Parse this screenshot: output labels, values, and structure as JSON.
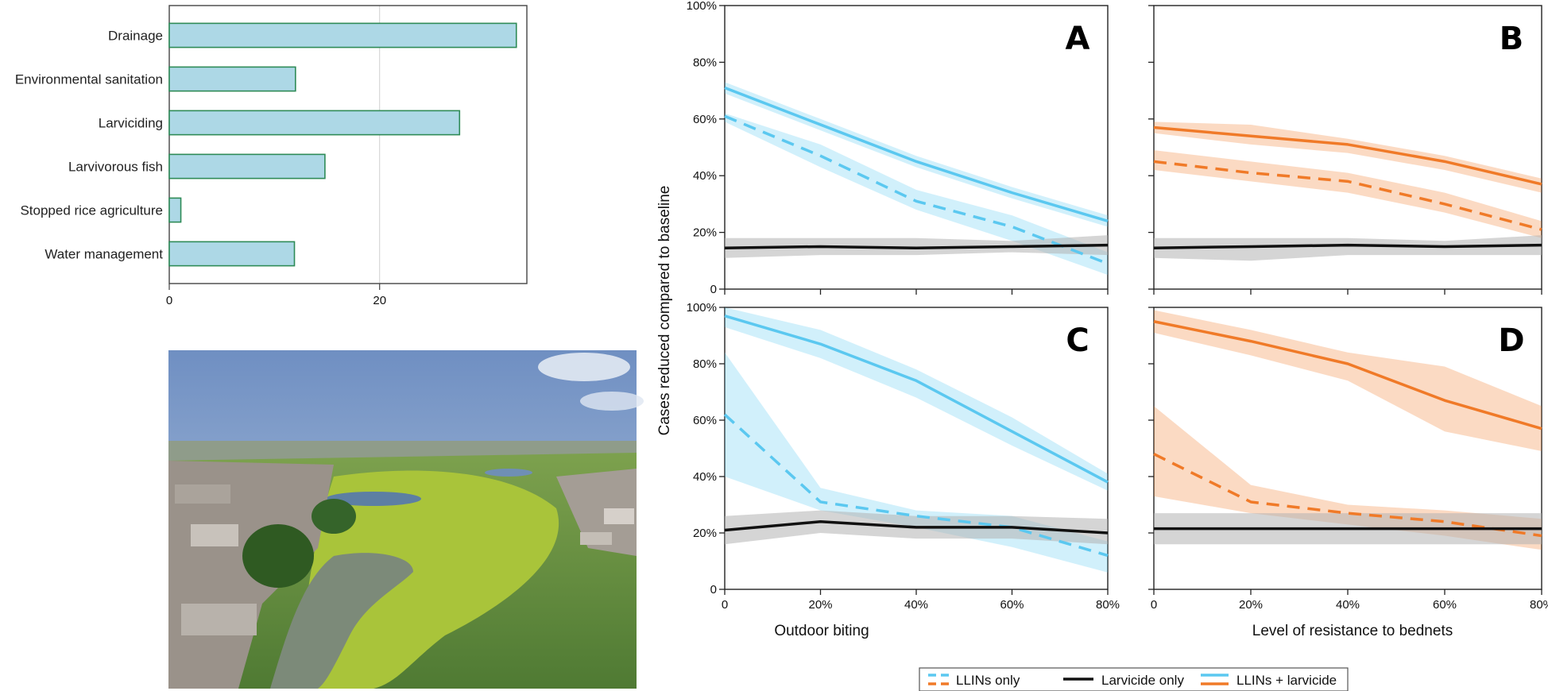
{
  "colors": {
    "bar_fill": "#add8e6",
    "bar_stroke": "#2e8b57",
    "blue": "#5bc8f0",
    "orange": "#f07a28",
    "black": "#111111",
    "gray_band": "#b3b3b3"
  },
  "chart_data": [
    {
      "id": "bar-chart",
      "type": "bar",
      "orientation": "horizontal",
      "categories": [
        "Drainage",
        "Environmental sanitation",
        "Larviciding",
        "Larvivorous fish",
        "Stopped rice agriculture",
        "Water management"
      ],
      "values": [
        33,
        12,
        27.6,
        14.8,
        1.1,
        11.9
      ],
      "xticks": [
        "0",
        "20"
      ],
      "xlim": [
        0,
        34
      ],
      "grid": true
    },
    {
      "id": "panel-A",
      "type": "line",
      "letter": "A",
      "x": [
        0,
        20,
        40,
        60,
        80
      ],
      "xticks": [
        "0",
        "20%",
        "40%",
        "60%",
        "80%"
      ],
      "yticks": [
        "0",
        "20%",
        "40%",
        "60%",
        "80%",
        "100%"
      ],
      "ylim": [
        0,
        100
      ],
      "series": [
        {
          "name": "LLINs only",
          "style": "dashed",
          "color": "blue",
          "values": [
            61,
            47,
            31,
            22,
            9
          ],
          "band_low": [
            59,
            43,
            28,
            17,
            5
          ],
          "band_high": [
            62,
            51,
            35,
            26,
            13
          ]
        },
        {
          "name": "Larvicide only",
          "style": "solid",
          "color": "black",
          "values": [
            14.5,
            15,
            14.5,
            15,
            15.5
          ],
          "band_low": [
            11,
            12,
            12,
            13,
            12
          ],
          "band_high": [
            18,
            18,
            18,
            17,
            19
          ]
        },
        {
          "name": "LLINs + larvicide",
          "style": "solid",
          "color": "blue",
          "values": [
            71,
            58,
            45,
            34,
            24
          ],
          "band_low": [
            69,
            56,
            43,
            32,
            22
          ],
          "band_high": [
            73,
            60,
            47,
            36,
            26
          ]
        }
      ]
    },
    {
      "id": "panel-B",
      "type": "line",
      "letter": "B",
      "x": [
        0,
        20,
        40,
        60,
        80
      ],
      "xticks": [
        "0",
        "20%",
        "40%",
        "60%",
        "80%"
      ],
      "yticks": [
        "0",
        "20%",
        "40%",
        "60%",
        "80%",
        "100%"
      ],
      "ylim": [
        0,
        100
      ],
      "series": [
        {
          "name": "LLINs only",
          "style": "dashed",
          "color": "orange",
          "values": [
            45,
            41,
            38,
            30,
            21
          ],
          "band_low": [
            42,
            38,
            34,
            27,
            18
          ],
          "band_high": [
            49,
            45,
            41,
            34,
            24
          ]
        },
        {
          "name": "Larvicide only",
          "style": "solid",
          "color": "black",
          "values": [
            14.5,
            15,
            15.5,
            15,
            15.5
          ],
          "band_low": [
            11,
            10,
            12,
            12,
            12
          ],
          "band_high": [
            18,
            18,
            18,
            17,
            19
          ]
        },
        {
          "name": "LLINs + larvicide",
          "style": "solid",
          "color": "orange",
          "values": [
            57,
            54,
            51,
            45,
            37
          ],
          "band_low": [
            55,
            51,
            48,
            42,
            34
          ],
          "band_high": [
            59,
            58,
            53,
            47,
            39
          ]
        }
      ]
    },
    {
      "id": "panel-C",
      "type": "line",
      "letter": "C",
      "x": [
        0,
        20,
        40,
        60,
        80
      ],
      "xticks": [
        "0",
        "20%",
        "40%",
        "60%",
        "80%"
      ],
      "yticks": [
        "0",
        "20%",
        "40%",
        "60%",
        "80%",
        "100%"
      ],
      "ylim": [
        0,
        100
      ],
      "axis_title_x": "Outdoor biting",
      "series": [
        {
          "name": "LLINs only",
          "style": "dashed",
          "color": "blue",
          "values": [
            62,
            31,
            26,
            22,
            12
          ],
          "band_low": [
            40,
            28,
            22,
            15,
            6
          ],
          "band_high": [
            84,
            36,
            28,
            26,
            17
          ]
        },
        {
          "name": "Larvicide only",
          "style": "solid",
          "color": "black",
          "values": [
            21,
            24,
            22,
            22,
            20
          ],
          "band_low": [
            16,
            20,
            18,
            18,
            16
          ],
          "band_high": [
            26,
            28,
            26,
            26,
            25
          ]
        },
        {
          "name": "LLINs + larvicide",
          "style": "solid",
          "color": "blue",
          "values": [
            97,
            87,
            74,
            56,
            38
          ],
          "band_low": [
            93,
            82,
            68,
            51,
            35
          ],
          "band_high": [
            100,
            92,
            78,
            61,
            41
          ]
        }
      ]
    },
    {
      "id": "panel-D",
      "type": "line",
      "letter": "D",
      "x": [
        0,
        20,
        40,
        60,
        80
      ],
      "xticks": [
        "0",
        "20%",
        "40%",
        "60%",
        "80%"
      ],
      "yticks": [
        "0",
        "20%",
        "40%",
        "60%",
        "80%",
        "100%"
      ],
      "ylim": [
        0,
        100
      ],
      "axis_title_x": "Level of resistance to bednets",
      "series": [
        {
          "name": "LLINs only",
          "style": "dashed",
          "color": "orange",
          "values": [
            48,
            31,
            27,
            24,
            19
          ],
          "band_low": [
            33,
            27,
            23,
            19,
            14
          ],
          "band_high": [
            65,
            37,
            30,
            28,
            25
          ]
        },
        {
          "name": "Larvicide only",
          "style": "solid",
          "color": "black",
          "values": [
            21.5,
            21.5,
            21.5,
            21.5,
            21.5
          ],
          "band_low": [
            16,
            16,
            16,
            16,
            16
          ],
          "band_high": [
            27,
            27,
            27,
            27,
            27
          ]
        },
        {
          "name": "LLINs + larvicide",
          "style": "solid",
          "color": "orange",
          "values": [
            95,
            88,
            80,
            67,
            57
          ],
          "band_low": [
            91,
            83,
            74,
            56,
            49
          ],
          "band_high": [
            99,
            92,
            84,
            79,
            65
          ]
        }
      ]
    }
  ],
  "shared_ylabel": "Cases reduced compared to baseline",
  "legend": {
    "items": [
      {
        "label": "LLINs only",
        "style": "dashed"
      },
      {
        "label": "Larvicide only",
        "style": "solid"
      },
      {
        "label": "LLINs + larvicide",
        "style": "solid"
      }
    ]
  }
}
